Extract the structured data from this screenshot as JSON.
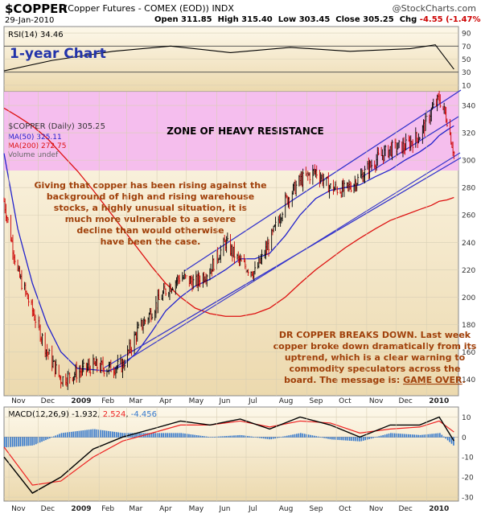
{
  "header": {
    "symbol": "$COPPER",
    "name": "(Copper Futures - COMEX (EOD)) INDX",
    "site": "@StockCharts.com",
    "date": "29-Jan-2010",
    "open_label": "Open",
    "open": "311.85",
    "high_label": "High",
    "high": "315.40",
    "low_label": "Low",
    "low": "303.45",
    "close_label": "Close",
    "close": "305.25",
    "chg_label": "Chg",
    "chg": "-4.55 (-1.47%)",
    "chg_arrow": "▼"
  },
  "rsi_panel": {
    "legend": "RSI(14) 34.46",
    "title": "1-year Chart",
    "ticks": [
      10,
      30,
      50,
      70,
      90
    ]
  },
  "price_panel": {
    "legend_main": "$COPPER (Daily) 305.25",
    "legend_ma50": "MA(50) 325.11",
    "legend_ma200": "MA(200) 272.75",
    "legend_volume": "Volume undef",
    "zone_text": "ZONE OF HEAVY RESISTANCE",
    "note_left": [
      "Giving that copper has been rising against the",
      "background of high and rising warehouse",
      "stocks, a highly unusual situation, it is",
      "much more vulnerable to a severe",
      "decline than would otherwise",
      "have been the case."
    ],
    "note_right": [
      "DR COPPER BREAKS DOWN. Last week",
      "copper broke down dramatically from its",
      "uptrend, which is a clear warning to",
      "commodity speculators across the"
    ],
    "note_right_last_prefix": "board. The message is: ",
    "note_right_last_emph": "GAME OVER",
    "note_right_last_suffix": ".",
    "ticks": [
      140,
      160,
      180,
      200,
      220,
      240,
      260,
      280,
      300,
      320,
      340
    ]
  },
  "macd_panel": {
    "legend_name": "MACD(12,26,9)",
    "legend_macd": "-1.932",
    "legend_signal": "2.524",
    "legend_hist": "-4.456",
    "ticks": [
      -30,
      -20,
      -10,
      0,
      10
    ]
  },
  "x_axis": {
    "months": [
      "Nov",
      "Dec",
      "2009",
      "Feb",
      "Mar",
      "Apr",
      "May",
      "Jun",
      "Jul",
      "Aug",
      "Sep",
      "Oct",
      "Nov",
      "Dec",
      "2010"
    ]
  },
  "colors": {
    "price_up": "#000000",
    "price_down": "#cc0000",
    "ma50": "#2222cc",
    "ma200": "#dd1111",
    "channel": "#3333cc",
    "resistance_zone": "#f4b8ee",
    "panel_bg_top": "#fdf8ea",
    "panel_bg_bottom": "#ecd9ae",
    "note_text": "#a0400a",
    "macd_line": "#000000",
    "signal_line": "#ee2222",
    "histogram": "#3377cc"
  },
  "chart_data": [
    {
      "type": "line",
      "title": "RSI(14)",
      "ylim": [
        0,
        100
      ],
      "x": [
        "2008-10-27",
        "2008-12-15",
        "2009-02-15",
        "2009-04-15",
        "2009-06-15",
        "2009-08-15",
        "2009-10-15",
        "2009-12-15",
        "2010-01-10",
        "2010-01-29"
      ],
      "series": [
        {
          "name": "RSI(14)",
          "values": [
            32,
            48,
            62,
            70,
            60,
            68,
            62,
            66,
            72,
            34.46
          ]
        }
      ]
    },
    {
      "type": "line",
      "title": "$COPPER (Daily)",
      "ylim": [
        128,
        350
      ],
      "x": [
        "2008-10-27",
        "2008-11-10",
        "2008-11-25",
        "2008-12-10",
        "2008-12-24",
        "2009-01-10",
        "2009-01-26",
        "2009-02-10",
        "2009-02-25",
        "2009-03-12",
        "2009-03-27",
        "2009-04-10",
        "2009-04-25",
        "2009-05-10",
        "2009-05-25",
        "2009-06-10",
        "2009-06-25",
        "2009-07-10",
        "2009-07-25",
        "2009-08-10",
        "2009-08-25",
        "2009-09-10",
        "2009-09-25",
        "2009-10-10",
        "2009-10-25",
        "2009-11-10",
        "2009-11-25",
        "2009-12-10",
        "2009-12-25",
        "2010-01-06",
        "2010-01-14",
        "2010-01-22",
        "2010-01-29"
      ],
      "series": [
        {
          "name": "$COPPER (Daily)",
          "values": [
            270,
            218,
            190,
            160,
            140,
            145,
            150,
            148,
            150,
            175,
            190,
            205,
            215,
            210,
            220,
            240,
            225,
            218,
            240,
            270,
            285,
            292,
            280,
            278,
            287,
            300,
            308,
            310,
            318,
            336,
            345,
            330,
            305.25
          ]
        },
        {
          "name": "MA(50)",
          "values": [
            305,
            250,
            210,
            180,
            160,
            148,
            147,
            146,
            150,
            160,
            175,
            190,
            200,
            208,
            213,
            220,
            228,
            228,
            232,
            245,
            260,
            272,
            278,
            280,
            282,
            288,
            293,
            300,
            306,
            312,
            318,
            322,
            325.11
          ]
        },
        {
          "name": "MA(200)",
          "values": [
            338,
            332,
            325,
            316,
            305,
            292,
            278,
            264,
            250,
            236,
            222,
            210,
            200,
            192,
            188,
            186,
            186,
            188,
            192,
            200,
            210,
            220,
            228,
            236,
            243,
            250,
            256,
            260,
            264,
            267,
            270,
            271,
            272.75
          ]
        }
      ]
    },
    {
      "type": "line",
      "title": "MACD(12,26,9)",
      "ylim": [
        -32,
        15
      ],
      "x": [
        "2008-10-27",
        "2008-11-25",
        "2008-12-24",
        "2009-01-26",
        "2009-02-25",
        "2009-03-27",
        "2009-04-25",
        "2009-05-25",
        "2009-06-25",
        "2009-07-25",
        "2009-08-25",
        "2009-09-25",
        "2009-10-25",
        "2009-11-25",
        "2009-12-25",
        "2010-01-14",
        "2010-01-29"
      ],
      "series": [
        {
          "name": "MACD",
          "values": [
            -10,
            -28,
            -20,
            -6,
            0,
            4,
            8,
            6,
            9,
            4,
            10,
            6,
            0,
            6,
            6,
            10,
            -1.932
          ]
        },
        {
          "name": "Signal",
          "values": [
            -5,
            -24,
            -22,
            -10,
            -2,
            2,
            6,
            6,
            8,
            5,
            8,
            7,
            2,
            4,
            5,
            8,
            2.524
          ]
        },
        {
          "name": "Histogram",
          "values": [
            -5,
            -4,
            2,
            4,
            2,
            2,
            2,
            0,
            1,
            -1,
            2,
            -1,
            -2,
            2,
            1,
            2,
            -4.456
          ]
        }
      ]
    }
  ]
}
